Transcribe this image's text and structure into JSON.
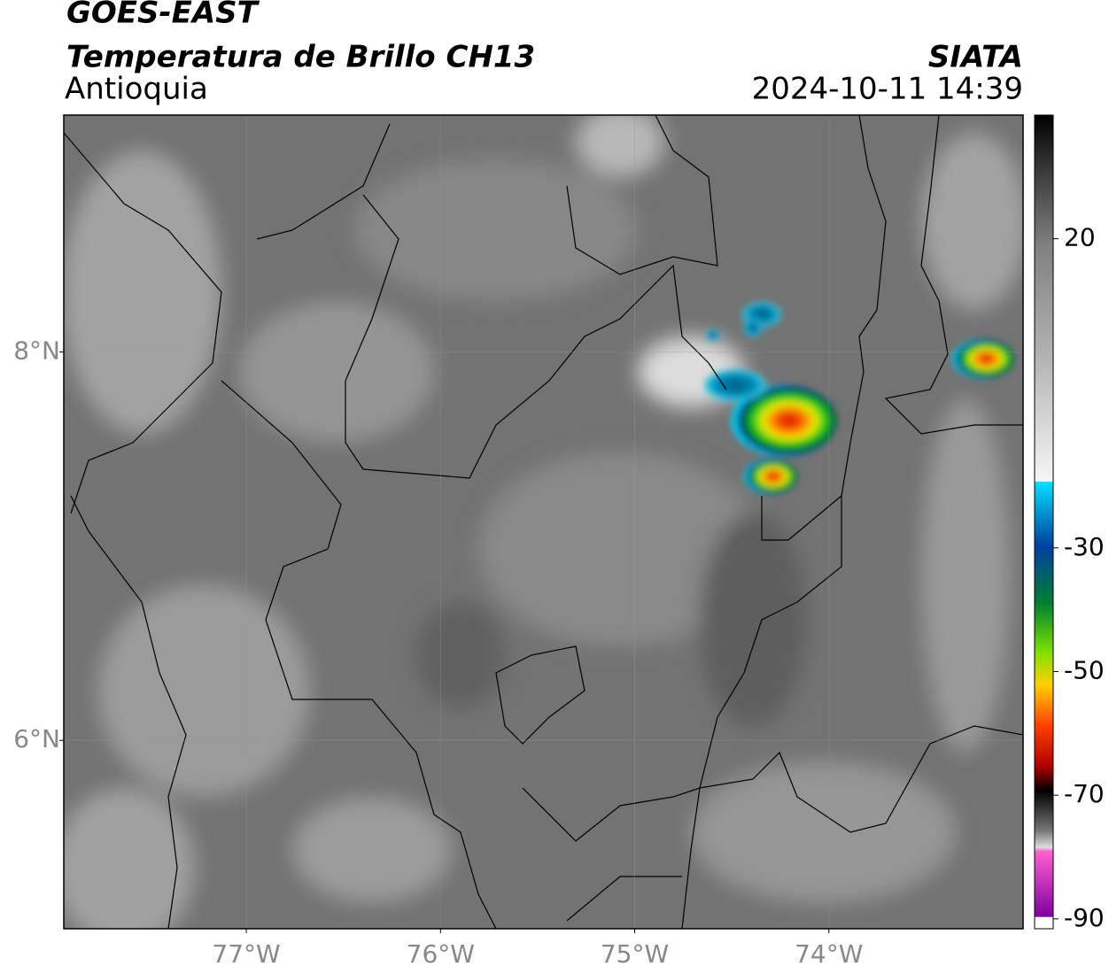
{
  "chart_data": {
    "type": "map",
    "title": "GOES-EAST",
    "subtitle": "Temperatura de Brillo CH13",
    "region": "Antioquia",
    "source": "SIATA",
    "timestamp": "2024-10-11 14:39",
    "xlim": [
      -77.94,
      -73.0
    ],
    "ylim": [
      5.03,
      9.22
    ],
    "xticks": [
      {
        "value": -77,
        "label": "77°W"
      },
      {
        "value": -76,
        "label": "76°W"
      },
      {
        "value": -75,
        "label": "75°W"
      },
      {
        "value": -74,
        "label": "74°W"
      }
    ],
    "yticks": [
      {
        "value": 8,
        "label": "8°N"
      },
      {
        "value": 6,
        "label": "6°N"
      }
    ],
    "grid": true,
    "colorbar": {
      "lim": [
        -91.6,
        40
      ],
      "ticks": [
        20,
        -30,
        -50,
        -70,
        -90
      ]
    }
  }
}
